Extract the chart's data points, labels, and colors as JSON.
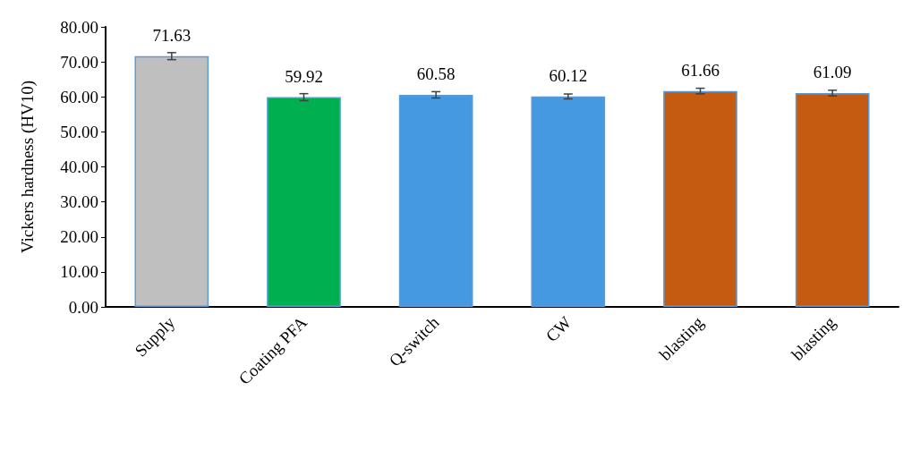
{
  "chart_data": {
    "type": "bar",
    "ylabel": "Vickers hardness (HV10)",
    "categories": [
      "Supply",
      "Coating PFA",
      "Q-switch",
      "CW",
      "blasting",
      "blasting"
    ],
    "values": [
      71.63,
      59.92,
      60.58,
      60.12,
      61.66,
      61.09
    ],
    "colors": [
      "#bfbfbf",
      "#00b050",
      "#4499e0",
      "#4499e0",
      "#c55a11",
      "#c55a11"
    ],
    "errors": [
      1.0,
      1.0,
      0.9,
      0.7,
      0.8,
      0.8
    ],
    "data_labels": true,
    "ylim": [
      0,
      80
    ],
    "yticks": [
      {
        "value": 0,
        "label": "0.00"
      },
      {
        "value": 10,
        "label": "10.00"
      },
      {
        "value": 20,
        "label": "20.00"
      },
      {
        "value": 30,
        "label": "30.00"
      },
      {
        "value": 40,
        "label": "40.00"
      },
      {
        "value": 50,
        "label": "50.00"
      },
      {
        "value": 60,
        "label": "60.00"
      },
      {
        "value": 70,
        "label": "70.00"
      },
      {
        "value": 80,
        "label": "80.00"
      }
    ],
    "grid": false
  }
}
